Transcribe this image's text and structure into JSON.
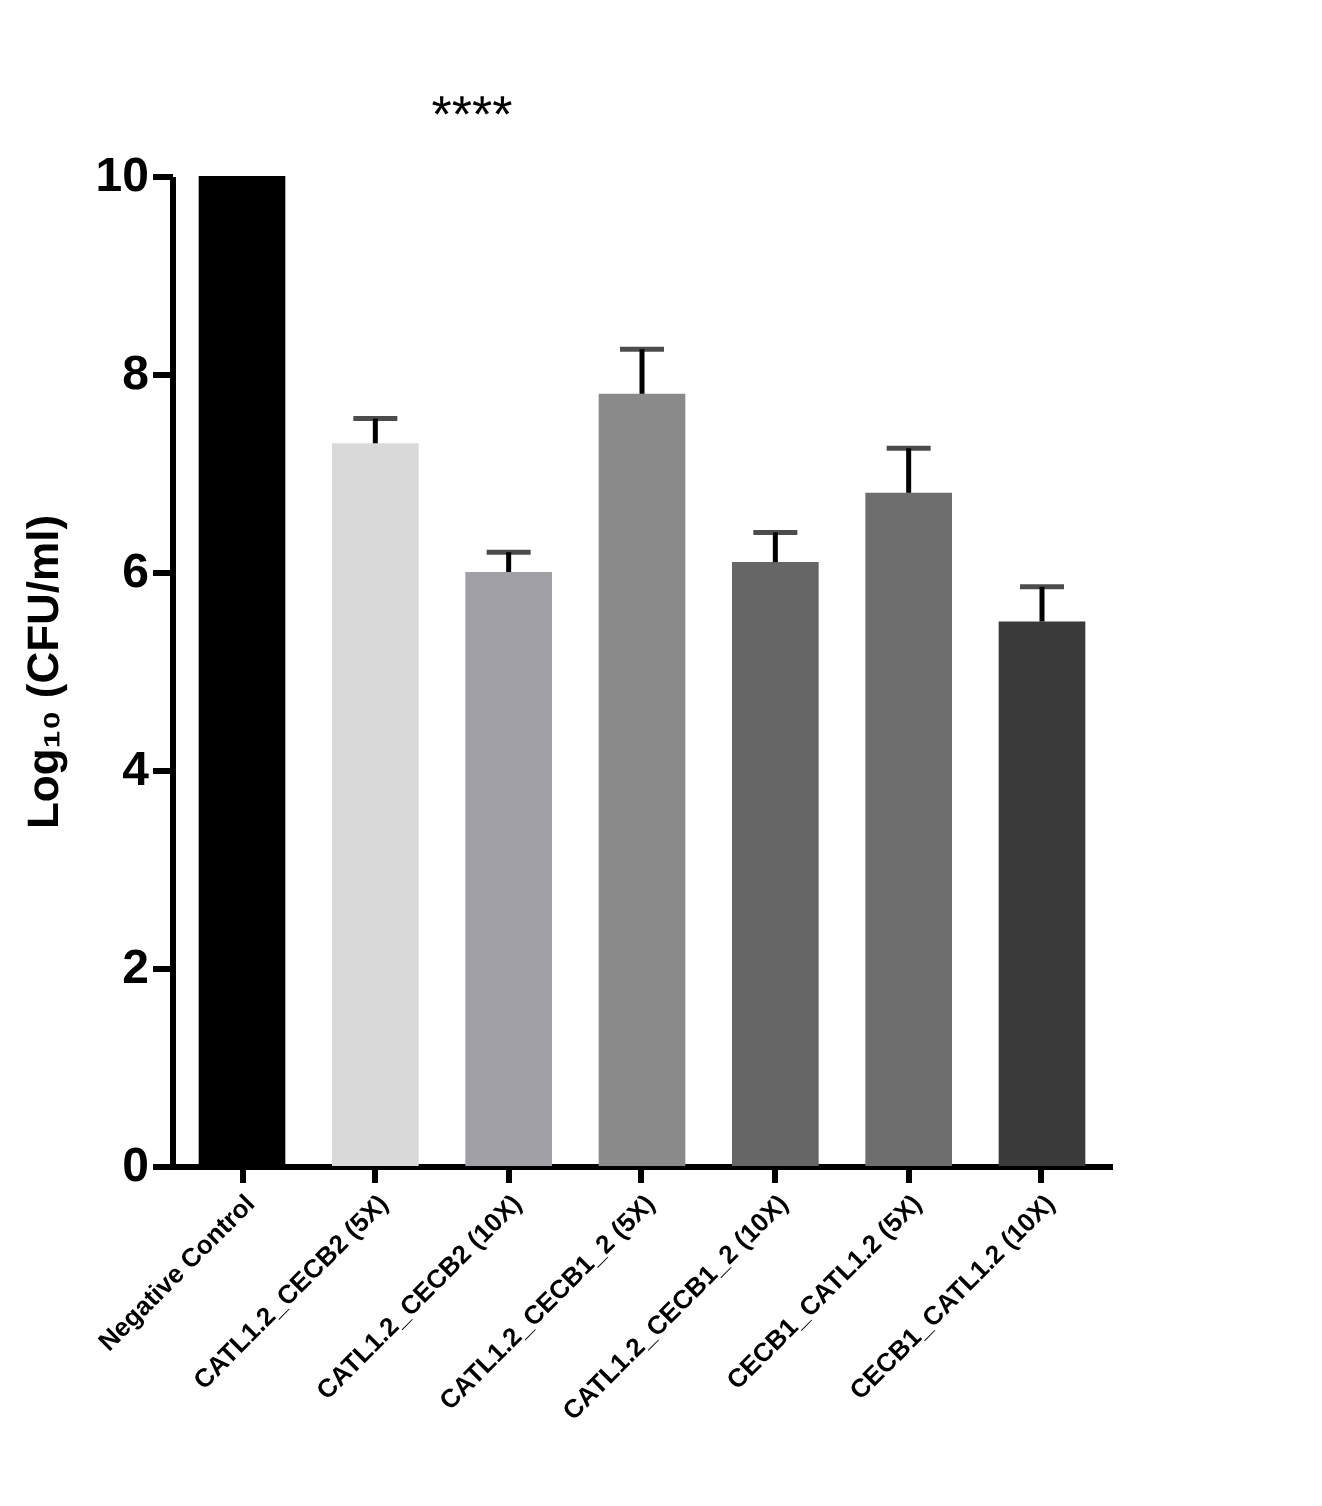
{
  "chart_data": {
    "type": "bar",
    "ylabel": "Log₁₀ (CFU/ml)",
    "categories": [
      "Negative Control",
      "CATL1.2_CECB2 (5X)",
      "CATL1.2_CECB2 (10X)",
      "CATL1.2_CECB1_2 (5X)",
      "CATL1.2_CECB1_2 (10X)",
      "CECB1_CATL1.2 (5X)",
      "CECB1_CATL1.2 (10X)"
    ],
    "values": [
      10,
      7.3,
      6.0,
      7.8,
      6.1,
      6.8,
      5.5
    ],
    "errors": [
      null,
      0.25,
      0.2,
      0.45,
      0.3,
      0.45,
      0.35
    ],
    "colors": [
      "#000000",
      "#d9d9d9",
      "#a0a0a6",
      "#8a8a8a",
      "#666666",
      "#6e6e6e",
      "#3a3a3a"
    ],
    "ylim": [
      0,
      10
    ],
    "yticks": [
      0,
      2,
      4,
      6,
      8,
      10
    ],
    "grid": false,
    "annotations": [
      "****"
    ]
  }
}
